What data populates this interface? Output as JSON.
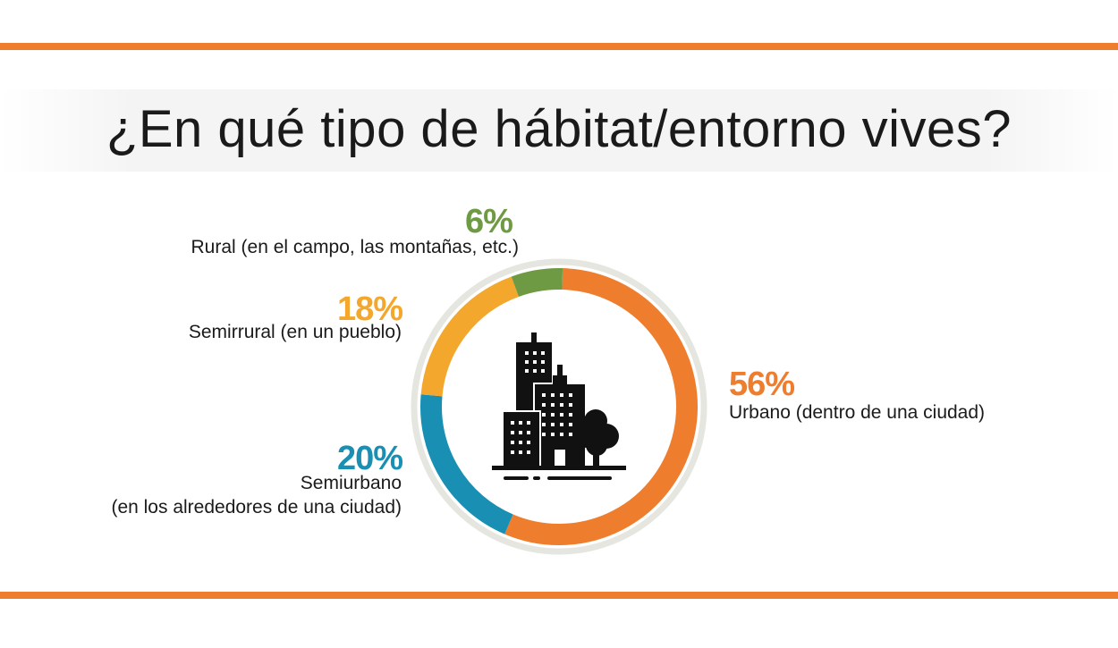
{
  "colors": {
    "accent_bar": "#ef7d2e",
    "urbano": "#ef7d2e",
    "semiurbano": "#1990b3",
    "semirrural": "#f3a72d",
    "rural": "#6f9a44",
    "ring_bg": "#e6e6e0",
    "icon": "#111111"
  },
  "chart_data": {
    "type": "pie",
    "variant": "donut",
    "title": "¿En qué tipo de hábitat/entorno vives?",
    "unit": "%",
    "slices": [
      {
        "key": "urbano",
        "name": "Urbano (dentro de una ciudad)",
        "value": 56,
        "label": "56%"
      },
      {
        "key": "semiurbano",
        "name": "Semiurbano (en los alrededores de una ciudad)",
        "line1": "Semiurbano",
        "line2": "(en los alrededores de una ciudad)",
        "value": 20,
        "label": "20%"
      },
      {
        "key": "semirrural",
        "name": "Semirrural (en un pueblo)",
        "value": 18,
        "label": "18%"
      },
      {
        "key": "rural",
        "name": "Rural (en el campo, las montañas, etc.)",
        "value": 6,
        "label": "6%"
      }
    ],
    "center_icon": "city-buildings-icon"
  }
}
